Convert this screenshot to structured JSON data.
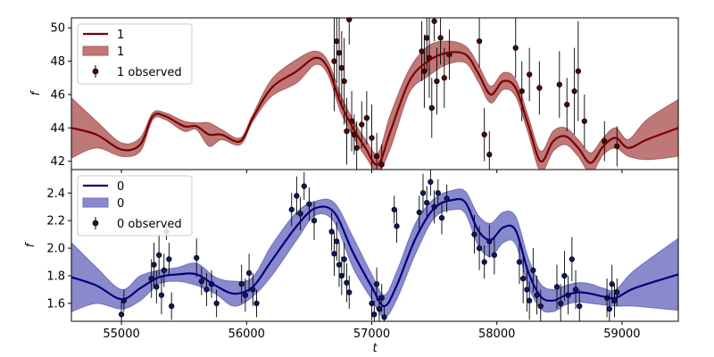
{
  "chart_data": [
    {
      "type": "line",
      "panel": "top",
      "xlabel": "",
      "ylabel": "f",
      "xlim": [
        54600,
        59450
      ],
      "ylim": [
        41.5,
        50.6
      ],
      "yticks": [
        42,
        44,
        46,
        48,
        50
      ],
      "xticks_shown": false,
      "colors": {
        "line": "#7b0000",
        "band": "#b05a5a",
        "points": "#4a0808"
      },
      "legend": {
        "position": "upper-left",
        "entries": [
          {
            "label": "1",
            "kind": "line"
          },
          {
            "label": "1",
            "kind": "band"
          },
          {
            "label": "1 observed",
            "kind": "errorbar"
          }
        ]
      },
      "model": {
        "x": [
          54600,
          54800,
          55000,
          55150,
          55250,
          55350,
          55500,
          55600,
          55700,
          55800,
          55950,
          56050,
          56200,
          56400,
          56550,
          56650,
          56750,
          56850,
          56950,
          57050,
          57150,
          57300,
          57450,
          57600,
          57750,
          57850,
          57950,
          58050,
          58150,
          58250,
          58350,
          58450,
          58550,
          58650,
          58750,
          58850,
          58950,
          59050,
          59200,
          59450
        ],
        "mean": [
          44.0,
          43.6,
          42.7,
          43.0,
          44.7,
          44.7,
          44.1,
          44.1,
          43.6,
          43.6,
          43.2,
          44.6,
          46.4,
          47.4,
          48.2,
          47.6,
          45.5,
          44.0,
          42.8,
          41.8,
          43.8,
          46.8,
          48.0,
          48.5,
          48.4,
          47.3,
          46.0,
          46.8,
          46.4,
          44.2,
          42.0,
          43.2,
          43.5,
          42.8,
          41.9,
          42.9,
          43.4,
          42.8,
          43.3,
          44.0
        ],
        "upper": [
          45.8,
          44.4,
          43.1,
          43.4,
          44.9,
          44.9,
          44.4,
          44.3,
          44.3,
          43.9,
          43.4,
          44.8,
          46.9,
          48.1,
          48.6,
          48.0,
          46.0,
          44.5,
          43.3,
          42.5,
          44.8,
          47.5,
          48.9,
          49.2,
          48.9,
          47.8,
          46.5,
          47.3,
          46.9,
          44.7,
          42.6,
          43.8,
          44.0,
          43.3,
          42.5,
          43.4,
          44.0,
          43.3,
          44.5,
          45.7
        ],
        "lower": [
          42.2,
          42.8,
          42.3,
          42.6,
          44.5,
          44.5,
          43.8,
          43.9,
          42.9,
          43.3,
          43.0,
          44.4,
          45.9,
          46.7,
          47.8,
          47.2,
          45.0,
          43.5,
          42.3,
          41.4,
          42.8,
          46.1,
          47.1,
          47.8,
          47.9,
          46.8,
          45.5,
          46.3,
          45.9,
          43.7,
          41.4,
          42.6,
          43.0,
          42.3,
          41.3,
          42.4,
          42.8,
          42.3,
          42.1,
          42.3
        ]
      },
      "observed": [
        {
          "x": 56700,
          "y": 48.0,
          "err": 3.0
        },
        {
          "x": 56720,
          "y": 49.2,
          "err": 2.5
        },
        {
          "x": 56740,
          "y": 48.5,
          "err": 2.8
        },
        {
          "x": 56760,
          "y": 47.6,
          "err": 2.2
        },
        {
          "x": 56780,
          "y": 46.8,
          "err": 2.6
        },
        {
          "x": 56800,
          "y": 43.8,
          "err": 2.0
        },
        {
          "x": 56820,
          "y": 50.5,
          "err": 1.5
        },
        {
          "x": 56840,
          "y": 44.4,
          "err": 1.8
        },
        {
          "x": 56860,
          "y": 43.6,
          "err": 1.2
        },
        {
          "x": 56880,
          "y": 42.8,
          "err": 1.6
        },
        {
          "x": 56920,
          "y": 44.2,
          "err": 1.4
        },
        {
          "x": 56960,
          "y": 44.6,
          "err": 1.6
        },
        {
          "x": 57000,
          "y": 43.4,
          "err": 2.0
        },
        {
          "x": 57040,
          "y": 42.3,
          "err": 1.4
        },
        {
          "x": 57080,
          "y": 41.8,
          "err": 1.2
        },
        {
          "x": 57400,
          "y": 48.6,
          "err": 1.8
        },
        {
          "x": 57420,
          "y": 47.4,
          "err": 2.2
        },
        {
          "x": 57440,
          "y": 49.4,
          "err": 2.0
        },
        {
          "x": 57460,
          "y": 48.2,
          "err": 2.4
        },
        {
          "x": 57480,
          "y": 45.2,
          "err": 1.8
        },
        {
          "x": 57500,
          "y": 50.4,
          "err": 1.2
        },
        {
          "x": 57520,
          "y": 46.8,
          "err": 2.0
        },
        {
          "x": 57550,
          "y": 49.4,
          "err": 1.6
        },
        {
          "x": 57580,
          "y": 47.0,
          "err": 1.8
        },
        {
          "x": 57620,
          "y": 48.4,
          "err": 1.5
        },
        {
          "x": 57860,
          "y": 49.2,
          "err": 1.6
        },
        {
          "x": 57900,
          "y": 43.6,
          "err": 1.6
        },
        {
          "x": 57940,
          "y": 42.4,
          "err": 1.4
        },
        {
          "x": 58150,
          "y": 48.8,
          "err": 1.8
        },
        {
          "x": 58200,
          "y": 46.2,
          "err": 1.8
        },
        {
          "x": 58260,
          "y": 47.2,
          "err": 1.6
        },
        {
          "x": 58340,
          "y": 46.4,
          "err": 1.6
        },
        {
          "x": 58500,
          "y": 46.6,
          "err": 2.0
        },
        {
          "x": 58560,
          "y": 45.4,
          "err": 1.6
        },
        {
          "x": 58620,
          "y": 46.2,
          "err": 2.6
        },
        {
          "x": 58650,
          "y": 47.4,
          "err": 3.0
        },
        {
          "x": 58700,
          "y": 44.4,
          "err": 1.6
        },
        {
          "x": 58860,
          "y": 43.2,
          "err": 1.2
        },
        {
          "x": 58960,
          "y": 42.9,
          "err": 1.2
        }
      ]
    },
    {
      "type": "line",
      "panel": "bottom",
      "xlabel": "t",
      "ylabel": "f",
      "xlim": [
        54600,
        59450
      ],
      "ylim": [
        1.47,
        2.57
      ],
      "yticks": [
        1.6,
        1.8,
        2.0,
        2.2,
        2.4
      ],
      "xticks": [
        55000,
        56000,
        57000,
        58000,
        59000
      ],
      "colors": {
        "line": "#00007f",
        "band": "#6f70c0",
        "points": "#0a1a66"
      },
      "legend": {
        "position": "upper-left",
        "entries": [
          {
            "label": "0",
            "kind": "line"
          },
          {
            "label": "0",
            "kind": "band"
          },
          {
            "label": "0 observed",
            "kind": "errorbar"
          }
        ]
      },
      "model": {
        "x": [
          54600,
          54800,
          55000,
          55150,
          55300,
          55450,
          55600,
          55750,
          55900,
          56050,
          56200,
          56400,
          56550,
          56700,
          56850,
          57000,
          57100,
          57200,
          57350,
          57500,
          57650,
          57750,
          57850,
          57950,
          58050,
          58150,
          58250,
          58350,
          58450,
          58550,
          58650,
          58750,
          58850,
          58950,
          59100,
          59450
        ],
        "mean": [
          1.79,
          1.73,
          1.63,
          1.71,
          1.79,
          1.81,
          1.81,
          1.73,
          1.67,
          1.72,
          1.91,
          2.16,
          2.29,
          2.26,
          1.97,
          1.72,
          1.58,
          1.73,
          2.07,
          2.29,
          2.35,
          2.33,
          2.13,
          2.06,
          2.15,
          2.13,
          1.83,
          1.65,
          1.62,
          1.66,
          1.68,
          1.67,
          1.65,
          1.64,
          1.71,
          1.81
        ],
        "upper": [
          2.04,
          1.86,
          1.7,
          1.8,
          1.84,
          1.86,
          1.89,
          1.79,
          1.76,
          1.79,
          2.02,
          2.26,
          2.34,
          2.33,
          2.08,
          1.81,
          1.66,
          1.83,
          2.18,
          2.36,
          2.42,
          2.41,
          2.24,
          2.18,
          2.26,
          2.23,
          1.93,
          1.74,
          1.7,
          1.73,
          1.75,
          1.74,
          1.71,
          1.7,
          1.84,
          2.07
        ],
        "lower": [
          1.54,
          1.6,
          1.56,
          1.62,
          1.74,
          1.76,
          1.73,
          1.67,
          1.58,
          1.65,
          1.8,
          2.06,
          2.24,
          2.19,
          1.86,
          1.63,
          1.5,
          1.63,
          1.96,
          2.22,
          2.28,
          2.25,
          2.02,
          1.94,
          2.04,
          2.03,
          1.73,
          1.56,
          1.54,
          1.59,
          1.61,
          1.6,
          1.59,
          1.58,
          1.58,
          1.55
        ]
      },
      "observed": [
        {
          "x": 55000,
          "y": 1.52,
          "err": 0.1
        },
        {
          "x": 55020,
          "y": 1.62,
          "err": 0.08
        },
        {
          "x": 55240,
          "y": 1.78,
          "err": 0.14
        },
        {
          "x": 55260,
          "y": 1.88,
          "err": 0.16
        },
        {
          "x": 55280,
          "y": 1.72,
          "err": 0.12
        },
        {
          "x": 55300,
          "y": 1.95,
          "err": 0.15
        },
        {
          "x": 55320,
          "y": 1.66,
          "err": 0.14
        },
        {
          "x": 55340,
          "y": 1.84,
          "err": 0.12
        },
        {
          "x": 55360,
          "y": 2.12,
          "err": 0.06
        },
        {
          "x": 55380,
          "y": 1.92,
          "err": 0.12
        },
        {
          "x": 55400,
          "y": 1.58,
          "err": 0.1
        },
        {
          "x": 55600,
          "y": 1.93,
          "err": 0.14
        },
        {
          "x": 55640,
          "y": 1.76,
          "err": 0.1
        },
        {
          "x": 55680,
          "y": 1.7,
          "err": 0.12
        },
        {
          "x": 55720,
          "y": 1.74,
          "err": 0.1
        },
        {
          "x": 55760,
          "y": 1.6,
          "err": 0.1
        },
        {
          "x": 55960,
          "y": 1.74,
          "err": 0.14
        },
        {
          "x": 55990,
          "y": 1.66,
          "err": 0.12
        },
        {
          "x": 56020,
          "y": 1.82,
          "err": 0.14
        },
        {
          "x": 56050,
          "y": 1.7,
          "err": 0.12
        },
        {
          "x": 56080,
          "y": 1.6,
          "err": 0.1
        },
        {
          "x": 56360,
          "y": 2.28,
          "err": 0.12
        },
        {
          "x": 56400,
          "y": 2.38,
          "err": 0.14
        },
        {
          "x": 56430,
          "y": 2.25,
          "err": 0.12
        },
        {
          "x": 56460,
          "y": 2.45,
          "err": 0.1
        },
        {
          "x": 56500,
          "y": 2.32,
          "err": 0.12
        },
        {
          "x": 56540,
          "y": 2.2,
          "err": 0.14
        },
        {
          "x": 56680,
          "y": 2.12,
          "err": 0.14
        },
        {
          "x": 56700,
          "y": 1.96,
          "err": 0.16
        },
        {
          "x": 56720,
          "y": 2.05,
          "err": 0.14
        },
        {
          "x": 56740,
          "y": 1.88,
          "err": 0.16
        },
        {
          "x": 56760,
          "y": 1.8,
          "err": 0.14
        },
        {
          "x": 56780,
          "y": 1.92,
          "err": 0.12
        },
        {
          "x": 56800,
          "y": 1.75,
          "err": 0.14
        },
        {
          "x": 56820,
          "y": 1.68,
          "err": 0.12
        },
        {
          "x": 57000,
          "y": 1.6,
          "err": 0.12
        },
        {
          "x": 57020,
          "y": 1.52,
          "err": 0.1
        },
        {
          "x": 57040,
          "y": 1.74,
          "err": 0.12
        },
        {
          "x": 57060,
          "y": 1.56,
          "err": 0.1
        },
        {
          "x": 57080,
          "y": 1.64,
          "err": 0.1
        },
        {
          "x": 57100,
          "y": 1.5,
          "err": 0.08
        },
        {
          "x": 57180,
          "y": 2.28,
          "err": 0.1
        },
        {
          "x": 57200,
          "y": 2.16,
          "err": 0.12
        },
        {
          "x": 57380,
          "y": 2.26,
          "err": 0.12
        },
        {
          "x": 57410,
          "y": 2.4,
          "err": 0.14
        },
        {
          "x": 57440,
          "y": 2.33,
          "err": 0.12
        },
        {
          "x": 57470,
          "y": 2.48,
          "err": 0.1
        },
        {
          "x": 57500,
          "y": 2.3,
          "err": 0.12
        },
        {
          "x": 57530,
          "y": 2.4,
          "err": 0.1
        },
        {
          "x": 57560,
          "y": 2.22,
          "err": 0.12
        },
        {
          "x": 57600,
          "y": 2.36,
          "err": 0.1
        },
        {
          "x": 57820,
          "y": 2.1,
          "err": 0.14
        },
        {
          "x": 57860,
          "y": 2.0,
          "err": 0.16
        },
        {
          "x": 57900,
          "y": 1.9,
          "err": 0.12
        },
        {
          "x": 57940,
          "y": 2.05,
          "err": 0.12
        },
        {
          "x": 57980,
          "y": 1.95,
          "err": 0.14
        },
        {
          "x": 58180,
          "y": 1.9,
          "err": 0.16
        },
        {
          "x": 58210,
          "y": 1.78,
          "err": 0.18
        },
        {
          "x": 58240,
          "y": 1.7,
          "err": 0.16
        },
        {
          "x": 58260,
          "y": 1.62,
          "err": 0.14
        },
        {
          "x": 58290,
          "y": 1.84,
          "err": 0.16
        },
        {
          "x": 58320,
          "y": 1.66,
          "err": 0.14
        },
        {
          "x": 58350,
          "y": 1.58,
          "err": 0.12
        },
        {
          "x": 58480,
          "y": 1.72,
          "err": 0.16
        },
        {
          "x": 58510,
          "y": 1.6,
          "err": 0.14
        },
        {
          "x": 58540,
          "y": 1.8,
          "err": 0.18
        },
        {
          "x": 58570,
          "y": 1.66,
          "err": 0.14
        },
        {
          "x": 58600,
          "y": 1.92,
          "err": 0.16
        },
        {
          "x": 58630,
          "y": 1.7,
          "err": 0.14
        },
        {
          "x": 58660,
          "y": 1.58,
          "err": 0.12
        },
        {
          "x": 58880,
          "y": 1.64,
          "err": 0.14
        },
        {
          "x": 58900,
          "y": 1.56,
          "err": 0.12
        },
        {
          "x": 58920,
          "y": 1.74,
          "err": 0.14
        },
        {
          "x": 58940,
          "y": 1.62,
          "err": 0.12
        },
        {
          "x": 58960,
          "y": 1.68,
          "err": 0.1
        }
      ]
    }
  ]
}
